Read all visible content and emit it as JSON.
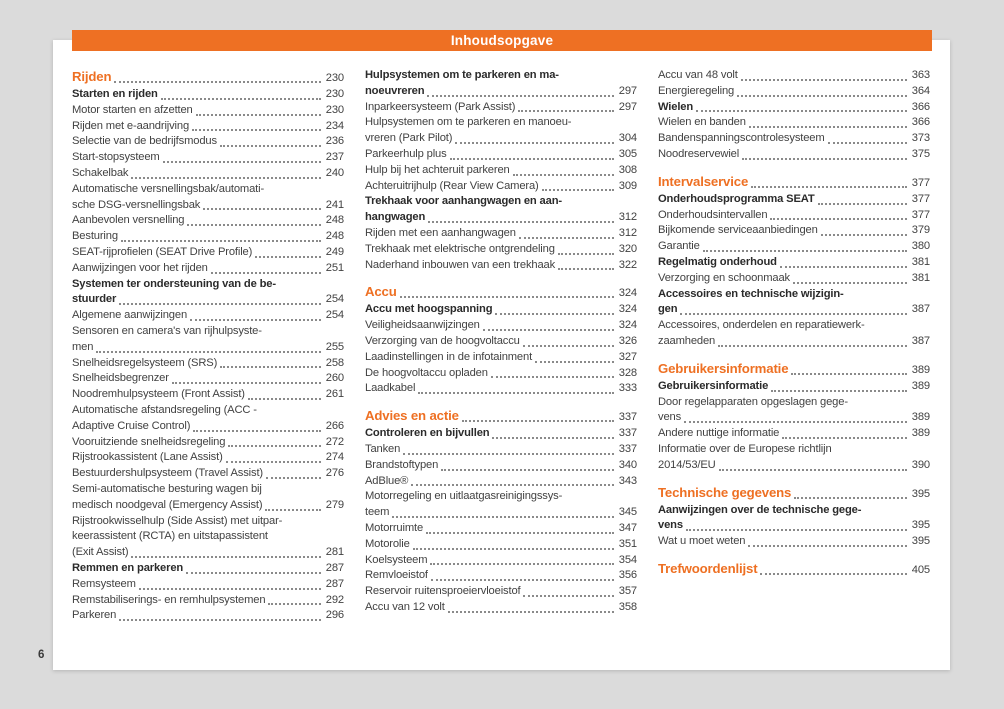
{
  "header": {
    "title": "Inhoudsopgave"
  },
  "page_number": "6",
  "colors": {
    "accent_orange": "#ee7023",
    "canvas_background": "#dbdbdb",
    "page_background": "#ffffff",
    "body_text": "#424242",
    "bold_text": "#2b2b2b"
  },
  "toc": {
    "columns": [
      {
        "entries": [
          {
            "style": "chapter",
            "lines": [
              "Rijden"
            ],
            "page": "230"
          },
          {
            "style": "section",
            "lines": [
              "Starten en rijden"
            ],
            "page": "230"
          },
          {
            "style": "item",
            "lines": [
              "Motor starten en afzetten"
            ],
            "page": "230"
          },
          {
            "style": "item",
            "lines": [
              "Rijden met e-aandrijving"
            ],
            "page": "234"
          },
          {
            "style": "item",
            "lines": [
              "Selectie van de bedrijfsmodus"
            ],
            "page": "236"
          },
          {
            "style": "item",
            "lines": [
              "Start-stopsysteem"
            ],
            "page": "237"
          },
          {
            "style": "item",
            "lines": [
              "Schakelbak"
            ],
            "page": "240"
          },
          {
            "style": "item",
            "lines": [
              "Automatische versnellingsbak/automati-",
              "sche DSG-versnellingsbak"
            ],
            "page": "241"
          },
          {
            "style": "item",
            "lines": [
              "Aanbevolen versnelling"
            ],
            "page": "248"
          },
          {
            "style": "item",
            "lines": [
              "Besturing"
            ],
            "page": "248"
          },
          {
            "style": "item",
            "lines": [
              "SEAT-rijprofielen (SEAT Drive Profile)"
            ],
            "page": "249"
          },
          {
            "style": "item",
            "lines": [
              "Aanwijzingen voor het rijden"
            ],
            "page": "251"
          },
          {
            "style": "section",
            "lines": [
              "Systemen ter ondersteuning van de be-",
              "stuurder"
            ],
            "page": "254"
          },
          {
            "style": "item",
            "lines": [
              "Algemene aanwijzingen"
            ],
            "page": "254"
          },
          {
            "style": "item",
            "lines": [
              "Sensoren en camera's van rijhulpsyste-",
              "men"
            ],
            "page": "255"
          },
          {
            "style": "item",
            "lines": [
              "Snelheidsregelsysteem (SRS)"
            ],
            "page": "258"
          },
          {
            "style": "item",
            "lines": [
              "Snelheidsbegrenzer"
            ],
            "page": "260"
          },
          {
            "style": "item",
            "lines": [
              "Noodremhulpsysteem (Front Assist)"
            ],
            "page": "261"
          },
          {
            "style": "item",
            "lines": [
              "Automatische afstandsregeling (ACC -",
              "Adaptive Cruise Control)"
            ],
            "page": "266"
          },
          {
            "style": "item",
            "lines": [
              "Vooruitziende snelheidsregeling"
            ],
            "page": "272"
          },
          {
            "style": "item",
            "lines": [
              "Rijstrookassistent (Lane Assist)"
            ],
            "page": "274"
          },
          {
            "style": "item",
            "lines": [
              "Bestuurdershulpsysteem (Travel Assist)"
            ],
            "page": "276"
          },
          {
            "style": "item",
            "lines": [
              "Semi-automatische besturing wagen bij",
              "medisch noodgeval (Emergency Assist)"
            ],
            "page": "279"
          },
          {
            "style": "item",
            "lines": [
              "Rijstrookwisselhulp (Side Assist) met uitpar-",
              "keerassistent (RCTA) en uitstapassistent",
              "(Exit Assist)"
            ],
            "page": "281"
          },
          {
            "style": "section",
            "lines": [
              "Remmen en parkeren"
            ],
            "page": "287"
          },
          {
            "style": "item",
            "lines": [
              "Remsysteem"
            ],
            "page": "287"
          },
          {
            "style": "item",
            "lines": [
              "Remstabiliserings- en remhulpsystemen"
            ],
            "page": "292"
          },
          {
            "style": "item",
            "lines": [
              "Parkeren"
            ],
            "page": "296"
          }
        ]
      },
      {
        "entries": [
          {
            "style": "section",
            "lines": [
              "Hulpsystemen om te parkeren en ma-",
              "noeuvreren"
            ],
            "page": "297"
          },
          {
            "style": "item",
            "lines": [
              "Inparkeersysteem (Park Assist)"
            ],
            "page": "297"
          },
          {
            "style": "item",
            "lines": [
              "Hulpsystemen om te parkeren en manoeu-",
              "vreren (Park Pilot)"
            ],
            "page": "304"
          },
          {
            "style": "item",
            "lines": [
              "Parkeerhulp plus"
            ],
            "page": "305"
          },
          {
            "style": "item",
            "lines": [
              "Hulp bij het achteruit parkeren"
            ],
            "page": "308"
          },
          {
            "style": "item",
            "lines": [
              "Achteruitrijhulp (Rear View Camera)"
            ],
            "page": "309"
          },
          {
            "style": "section",
            "lines": [
              "Trekhaak voor aanhangwagen en aan-",
              "hangwagen"
            ],
            "page": "312"
          },
          {
            "style": "item",
            "lines": [
              "Rijden met een aanhangwagen"
            ],
            "page": "312"
          },
          {
            "style": "item",
            "lines": [
              "Trekhaak met elektrische ontgrendeling"
            ],
            "page": "320"
          },
          {
            "style": "item",
            "lines": [
              "Naderhand inbouwen van een trekhaak"
            ],
            "page": "322"
          },
          {
            "style": "chapter",
            "lines": [
              "Accu"
            ],
            "page": "324"
          },
          {
            "style": "section",
            "lines": [
              "Accu met hoogspanning"
            ],
            "page": "324"
          },
          {
            "style": "item",
            "lines": [
              "Veiligheidsaanwijzingen"
            ],
            "page": "324"
          },
          {
            "style": "item",
            "lines": [
              "Verzorging van de hoogvoltaccu"
            ],
            "page": "326"
          },
          {
            "style": "item",
            "lines": [
              "Laadinstellingen in de infotainment"
            ],
            "page": "327"
          },
          {
            "style": "item",
            "lines": [
              "De hoogvoltaccu opladen"
            ],
            "page": "328"
          },
          {
            "style": "item",
            "lines": [
              "Laadkabel"
            ],
            "page": "333"
          },
          {
            "style": "chapter",
            "lines": [
              "Advies en actie"
            ],
            "page": "337"
          },
          {
            "style": "section",
            "lines": [
              "Controleren en bijvullen"
            ],
            "page": "337"
          },
          {
            "style": "item",
            "lines": [
              "Tanken"
            ],
            "page": "337"
          },
          {
            "style": "item",
            "lines": [
              "Brandstoftypen"
            ],
            "page": "340"
          },
          {
            "style": "item",
            "lines": [
              "AdBlue®"
            ],
            "page": "343"
          },
          {
            "style": "item",
            "lines": [
              "Motorregeling en uitlaatgasreinigingssys-",
              "teem"
            ],
            "page": "345"
          },
          {
            "style": "item",
            "lines": [
              "Motorruimte"
            ],
            "page": "347"
          },
          {
            "style": "item",
            "lines": [
              "Motorolie"
            ],
            "page": "351"
          },
          {
            "style": "item",
            "lines": [
              "Koelsysteem"
            ],
            "page": "354"
          },
          {
            "style": "item",
            "lines": [
              "Remvloeistof"
            ],
            "page": "356"
          },
          {
            "style": "item",
            "lines": [
              "Reservoir ruitensproeiervloeistof"
            ],
            "page": "357"
          },
          {
            "style": "item",
            "lines": [
              "Accu van 12 volt"
            ],
            "page": "358"
          }
        ]
      },
      {
        "entries": [
          {
            "style": "item",
            "lines": [
              "Accu van 48 volt"
            ],
            "page": "363"
          },
          {
            "style": "item",
            "lines": [
              "Energieregeling"
            ],
            "page": "364"
          },
          {
            "style": "section",
            "lines": [
              "Wielen"
            ],
            "page": "366"
          },
          {
            "style": "item",
            "lines": [
              "Wielen en banden"
            ],
            "page": "366"
          },
          {
            "style": "item",
            "lines": [
              "Bandenspanningscontrolesysteem"
            ],
            "page": "373"
          },
          {
            "style": "item",
            "lines": [
              "Noodreservewiel"
            ],
            "page": "375"
          },
          {
            "style": "chapter",
            "lines": [
              "Intervalservice"
            ],
            "page": "377"
          },
          {
            "style": "section",
            "lines": [
              "Onderhoudsprogramma SEAT"
            ],
            "page": "377"
          },
          {
            "style": "item",
            "lines": [
              "Onderhoudsintervallen"
            ],
            "page": "377"
          },
          {
            "style": "item",
            "lines": [
              "Bijkomende serviceaanbiedingen"
            ],
            "page": "379"
          },
          {
            "style": "item",
            "lines": [
              "Garantie"
            ],
            "page": "380"
          },
          {
            "style": "section",
            "lines": [
              "Regelmatig onderhoud"
            ],
            "page": "381"
          },
          {
            "style": "item",
            "lines": [
              "Verzorging en schoonmaak"
            ],
            "page": "381"
          },
          {
            "style": "section",
            "lines": [
              "Accessoires en technische wijzigin-",
              "gen"
            ],
            "page": "387"
          },
          {
            "style": "item",
            "lines": [
              "Accessoires, onderdelen en reparatiewerk-",
              "zaamheden"
            ],
            "page": "387"
          },
          {
            "style": "chapter",
            "lines": [
              "Gebruikersinformatie"
            ],
            "page": "389"
          },
          {
            "style": "section",
            "lines": [
              "Gebruikersinformatie"
            ],
            "page": "389"
          },
          {
            "style": "item",
            "lines": [
              "Door regelapparaten opgeslagen gege-",
              "vens"
            ],
            "page": "389"
          },
          {
            "style": "item",
            "lines": [
              "Andere nuttige informatie"
            ],
            "page": "389"
          },
          {
            "style": "item",
            "lines": [
              "Informatie over de Europese richtlijn",
              "2014/53/EU"
            ],
            "page": "390"
          },
          {
            "style": "chapter",
            "lines": [
              "Technische gegevens"
            ],
            "page": "395"
          },
          {
            "style": "section",
            "lines": [
              "Aanwijzingen over de technische gege-",
              "vens"
            ],
            "page": "395"
          },
          {
            "style": "item",
            "lines": [
              "Wat u moet weten"
            ],
            "page": "395"
          },
          {
            "style": "chapter",
            "lines": [
              "Trefwoordenlijst"
            ],
            "page": "405"
          }
        ]
      }
    ]
  }
}
